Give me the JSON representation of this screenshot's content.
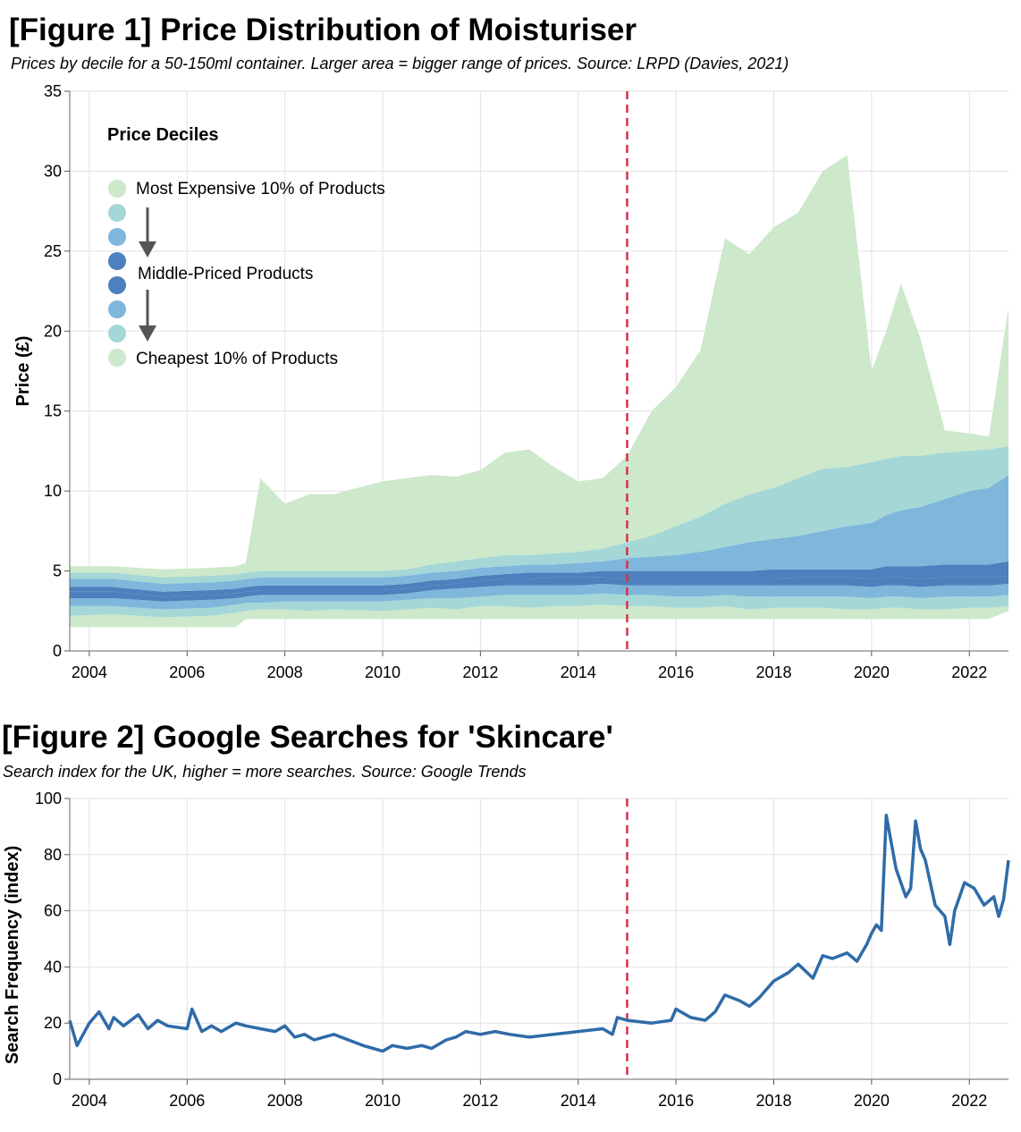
{
  "chart_data": [
    {
      "type": "area",
      "title": "[Figure 1] Price Distribution of Moisturiser",
      "subtitle": "Prices by decile for a 50-150ml container. Larger area = bigger range of prices. Source: LRPD (Davies, 2021)",
      "xlabel": "",
      "ylabel": "Price (£)",
      "xlim": [
        2003.6,
        2022.8
      ],
      "ylim": [
        0,
        35
      ],
      "x_ticks": [
        "2004",
        "2006",
        "2008",
        "2010",
        "2012",
        "2014",
        "2016",
        "2018",
        "2020",
        "2022"
      ],
      "y_ticks": [
        "0",
        "5",
        "10",
        "15",
        "20",
        "25",
        "30",
        "35"
      ],
      "grid": true,
      "reference_line_x": 2015,
      "legend": {
        "title": "Price Deciles",
        "placement": "top-left",
        "labels": [
          "Most Expensive 10% of Products",
          "Middle-Priced Products",
          "Cheapest 10% of Products"
        ],
        "colors": [
          "#cde8cb",
          "#a4d7d6",
          "#7fb6dc",
          "#4d80bc",
          "#4d80bc",
          "#7fb6dc",
          "#a4d7d6",
          "#cde8cb"
        ]
      },
      "x": [
        2003.6,
        2004.5,
        2005.5,
        2006.5,
        2007.0,
        2007.2,
        2007.5,
        2008.0,
        2008.5,
        2009.0,
        2010.0,
        2010.5,
        2011.0,
        2011.5,
        2012.0,
        2012.5,
        2013.0,
        2013.5,
        2014.0,
        2014.5,
        2015.0,
        2015.5,
        2016.0,
        2016.5,
        2017.0,
        2017.5,
        2018.0,
        2018.5,
        2019.0,
        2019.5,
        2020.0,
        2020.3,
        2020.6,
        2021.0,
        2021.5,
        2022.0,
        2022.4,
        2022.8
      ],
      "series": [
        {
          "values": [
            1.5,
            1.5,
            1.5,
            1.5,
            1.5,
            2.0,
            2.0,
            2.0,
            2.0,
            2.0,
            2.0,
            2.0,
            2.0,
            2.0,
            2.0,
            2.0,
            2.0,
            2.0,
            2.0,
            2.0,
            2.0,
            2.0,
            2.0,
            2.0,
            2.0,
            2.0,
            2.0,
            2.0,
            2.0,
            2.0,
            2.0,
            2.0,
            2.0,
            2.0,
            2.0,
            2.0,
            2.0,
            2.5
          ]
        },
        {
          "values": [
            2.2,
            2.3,
            2.1,
            2.2,
            2.4,
            2.5,
            2.6,
            2.6,
            2.5,
            2.6,
            2.5,
            2.6,
            2.7,
            2.6,
            2.8,
            2.8,
            2.7,
            2.8,
            2.8,
            2.9,
            2.8,
            2.8,
            2.7,
            2.7,
            2.8,
            2.6,
            2.7,
            2.7,
            2.7,
            2.6,
            2.6,
            2.7,
            2.7,
            2.6,
            2.6,
            2.7,
            2.7,
            2.8
          ]
        },
        {
          "values": [
            2.8,
            2.8,
            2.6,
            2.7,
            2.9,
            3.0,
            3.0,
            3.1,
            3.1,
            3.1,
            3.1,
            3.2,
            3.3,
            3.3,
            3.4,
            3.5,
            3.5,
            3.5,
            3.5,
            3.6,
            3.5,
            3.5,
            3.4,
            3.4,
            3.5,
            3.4,
            3.4,
            3.4,
            3.4,
            3.4,
            3.3,
            3.4,
            3.4,
            3.3,
            3.4,
            3.4,
            3.4,
            3.5
          ]
        },
        {
          "values": [
            3.3,
            3.3,
            3.1,
            3.2,
            3.3,
            3.4,
            3.5,
            3.5,
            3.5,
            3.5,
            3.5,
            3.6,
            3.8,
            3.9,
            4.0,
            4.1,
            4.1,
            4.1,
            4.1,
            4.2,
            4.1,
            4.1,
            4.1,
            4.1,
            4.1,
            4.1,
            4.1,
            4.1,
            4.1,
            4.1,
            4.0,
            4.1,
            4.1,
            4.0,
            4.1,
            4.1,
            4.1,
            4.2
          ]
        },
        {
          "values": [
            3.7,
            3.7,
            3.4,
            3.5,
            3.6,
            3.7,
            3.8,
            3.8,
            3.8,
            3.8,
            3.8,
            3.9,
            4.1,
            4.2,
            4.4,
            4.5,
            4.5,
            4.6,
            4.6,
            4.6,
            4.5,
            4.5,
            4.5,
            4.5,
            4.5,
            4.5,
            4.5,
            4.6,
            4.6,
            4.6,
            4.5,
            4.6,
            4.6,
            4.5,
            4.6,
            4.6,
            4.6,
            4.7
          ]
        },
        {
          "values": [
            4.0,
            4.0,
            3.7,
            3.8,
            3.9,
            4.0,
            4.1,
            4.1,
            4.1,
            4.1,
            4.1,
            4.2,
            4.4,
            4.5,
            4.7,
            4.8,
            4.9,
            4.9,
            4.9,
            5.0,
            5.0,
            5.0,
            5.0,
            5.0,
            5.0,
            5.0,
            5.1,
            5.1,
            5.1,
            5.1,
            5.1,
            5.3,
            5.3,
            5.3,
            5.4,
            5.4,
            5.4,
            5.6
          ]
        },
        {
          "values": [
            4.5,
            4.5,
            4.2,
            4.3,
            4.4,
            4.5,
            4.6,
            4.6,
            4.6,
            4.6,
            4.6,
            4.7,
            4.9,
            5.0,
            5.2,
            5.3,
            5.4,
            5.4,
            5.5,
            5.6,
            5.8,
            5.9,
            6.0,
            6.2,
            6.5,
            6.8,
            7.0,
            7.2,
            7.5,
            7.8,
            8.0,
            8.5,
            8.8,
            9.0,
            9.5,
            10.0,
            10.2,
            11.0
          ]
        },
        {
          "values": [
            4.9,
            4.9,
            4.6,
            4.7,
            4.8,
            4.9,
            5.0,
            5.0,
            5.0,
            5.0,
            5.0,
            5.1,
            5.4,
            5.6,
            5.8,
            6.0,
            6.0,
            6.1,
            6.2,
            6.4,
            6.8,
            7.2,
            7.8,
            8.4,
            9.2,
            9.8,
            10.2,
            10.8,
            11.4,
            11.5,
            11.8,
            12.0,
            12.2,
            12.2,
            12.4,
            12.5,
            12.6,
            12.8
          ]
        },
        {
          "values": [
            5.3,
            5.3,
            5.1,
            5.2,
            5.3,
            5.5,
            10.8,
            9.2,
            9.8,
            9.8,
            10.6,
            10.8,
            11.0,
            10.9,
            11.3,
            12.4,
            12.6,
            11.5,
            10.6,
            10.8,
            12.2,
            15.0,
            16.5,
            18.8,
            25.8,
            24.8,
            26.5,
            27.4,
            30.0,
            31.0,
            17.5,
            20.0,
            23.0,
            19.5,
            13.8,
            13.6,
            13.4,
            21.5
          ]
        }
      ]
    },
    {
      "type": "line",
      "title": "[Figure 2] Google Searches for 'Skincare'",
      "subtitle": "Search index for the UK, higher = more searches. Source: Google Trends",
      "xlabel": "",
      "ylabel": "Search Frequency (index)",
      "xlim": [
        2003.6,
        2022.8
      ],
      "ylim": [
        0,
        100
      ],
      "x_ticks": [
        "2004",
        "2006",
        "2008",
        "2010",
        "2012",
        "2014",
        "2016",
        "2018",
        "2020",
        "2022"
      ],
      "y_ticks": [
        "0",
        "20",
        "40",
        "60",
        "80",
        "100"
      ],
      "grid": true,
      "reference_line_x": 2015,
      "colors": {
        "line": "#2f6ba8",
        "reference": "#d6324a"
      },
      "x": [
        2003.6,
        2003.75,
        2004.0,
        2004.2,
        2004.4,
        2004.5,
        2004.7,
        2005.0,
        2005.2,
        2005.4,
        2005.6,
        2006.0,
        2006.1,
        2006.3,
        2006.5,
        2006.7,
        2007.0,
        2007.2,
        2007.5,
        2007.8,
        2008.0,
        2008.2,
        2008.4,
        2008.6,
        2009.0,
        2009.3,
        2009.6,
        2010.0,
        2010.2,
        2010.5,
        2010.8,
        2011.0,
        2011.3,
        2011.5,
        2011.7,
        2012.0,
        2012.3,
        2012.6,
        2013.0,
        2013.5,
        2014.0,
        2014.5,
        2014.7,
        2014.8,
        2015.0,
        2015.5,
        2015.9,
        2016.0,
        2016.3,
        2016.6,
        2016.8,
        2017.0,
        2017.3,
        2017.5,
        2017.7,
        2018.0,
        2018.3,
        2018.5,
        2018.8,
        2019.0,
        2019.2,
        2019.5,
        2019.7,
        2019.9,
        2020.0,
        2020.1,
        2020.2,
        2020.3,
        2020.5,
        2020.7,
        2020.8,
        2020.9,
        2021.0,
        2021.1,
        2021.3,
        2021.5,
        2021.6,
        2021.7,
        2021.9,
        2022.1,
        2022.3,
        2022.5,
        2022.6,
        2022.7,
        2022.8
      ],
      "values": [
        21,
        12,
        20,
        24,
        18,
        22,
        19,
        23,
        18,
        21,
        19,
        18,
        25,
        17,
        19,
        17,
        20,
        19,
        18,
        17,
        19,
        15,
        16,
        14,
        16,
        14,
        12,
        10,
        12,
        11,
        12,
        11,
        14,
        15,
        17,
        16,
        17,
        16,
        15,
        16,
        17,
        18,
        16,
        22,
        21,
        20,
        21,
        25,
        22,
        21,
        24,
        30,
        28,
        26,
        29,
        35,
        38,
        41,
        36,
        44,
        43,
        45,
        42,
        48,
        52,
        55,
        53,
        94,
        75,
        65,
        68,
        92,
        82,
        78,
        62,
        58,
        48,
        60,
        70,
        68,
        62,
        65,
        58,
        64,
        78
      ]
    }
  ]
}
